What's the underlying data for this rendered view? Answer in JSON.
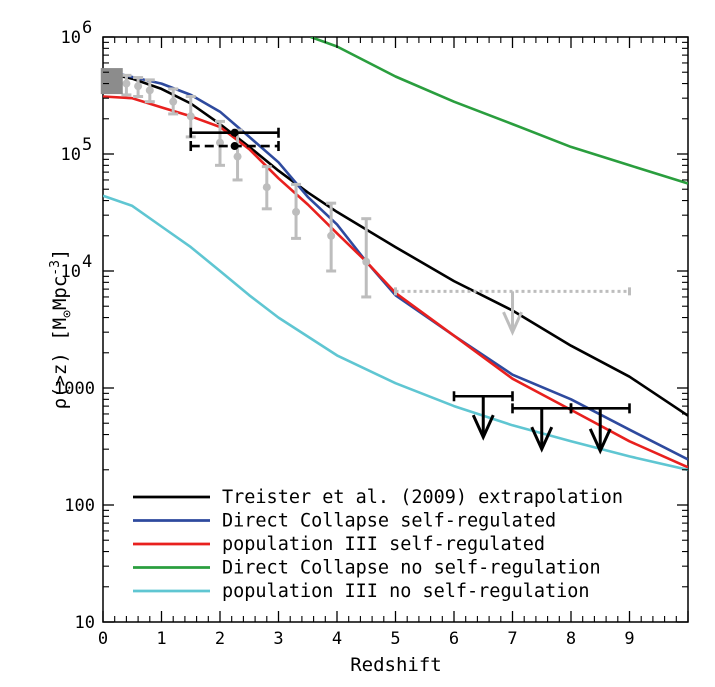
{
  "chart_data": {
    "type": "line",
    "xlabel": "Redshift",
    "ylabel_parts": {
      "prefix": "ρ(>z)  [M",
      "sub": "⊙",
      "mid": "Mpc",
      "sup": "-3",
      "suffix": "]"
    },
    "xlim": [
      0,
      10
    ],
    "ylim": [
      10,
      1000000
    ],
    "yscale": "log",
    "x_ticks": [
      0,
      1,
      2,
      3,
      4,
      5,
      6,
      7,
      8,
      9
    ],
    "x_tick_labels": [
      "0",
      "1",
      "2",
      "3",
      "4",
      "5",
      "6",
      "7",
      "8",
      "9"
    ],
    "y_ticks": [
      10,
      100,
      1000,
      10000,
      100000,
      1000000
    ],
    "y_tick_labels": [
      {
        "base": "10",
        "exp": ""
      },
      {
        "base": "100",
        "exp": ""
      },
      {
        "base": "1000",
        "exp": ""
      },
      {
        "base": "10",
        "exp": "4"
      },
      {
        "base": "10",
        "exp": "5"
      },
      {
        "base": "10",
        "exp": "6"
      }
    ],
    "legend_position": "bottom-left",
    "series": [
      {
        "name": "Treister et al. (2009) extrapolation",
        "color": "#000000",
        "points": [
          [
            0,
            500000
          ],
          [
            0.5,
            440000
          ],
          [
            1,
            360000
          ],
          [
            1.5,
            270000
          ],
          [
            2,
            180000
          ],
          [
            2.5,
            115000
          ],
          [
            3,
            72000
          ],
          [
            3.5,
            47000
          ],
          [
            4,
            32000
          ],
          [
            5,
            16000
          ],
          [
            6,
            8200
          ],
          [
            7,
            4600
          ],
          [
            8,
            2300
          ],
          [
            9,
            1250
          ],
          [
            10,
            580
          ]
        ]
      },
      {
        "name": "Direct Collapse self-regulated",
        "color": "#2e4a9e",
        "points": [
          [
            0,
            480000
          ],
          [
            0.3,
            480000
          ],
          [
            1,
            400000
          ],
          [
            1.5,
            320000
          ],
          [
            2,
            230000
          ],
          [
            2.5,
            140000
          ],
          [
            3,
            85000
          ],
          [
            3.5,
            43000
          ],
          [
            4,
            25000
          ],
          [
            4.5,
            12000
          ],
          [
            5,
            6200
          ],
          [
            6,
            2800
          ],
          [
            7,
            1300
          ],
          [
            8,
            800
          ],
          [
            9,
            440
          ],
          [
            10,
            245
          ]
        ]
      },
      {
        "name": "population III self-regulated",
        "color": "#e8201e",
        "points": [
          [
            0,
            310000
          ],
          [
            0.5,
            300000
          ],
          [
            1,
            250000
          ],
          [
            1.5,
            210000
          ],
          [
            2,
            170000
          ],
          [
            2.5,
            110000
          ],
          [
            3,
            62000
          ],
          [
            3.5,
            37000
          ],
          [
            4,
            21000
          ],
          [
            4.5,
            12000
          ],
          [
            5,
            6500
          ],
          [
            6,
            2800
          ],
          [
            7,
            1200
          ],
          [
            8,
            650
          ],
          [
            9,
            350
          ],
          [
            10,
            210
          ]
        ]
      },
      {
        "name": "Direct Collapse no self-regulation",
        "color": "#2a9e3e",
        "points": [
          [
            3.55,
            1000000
          ],
          [
            4,
            830000
          ],
          [
            5,
            460000
          ],
          [
            6,
            280000
          ],
          [
            7,
            180000
          ],
          [
            8,
            115000
          ],
          [
            9,
            80000
          ],
          [
            10,
            56000
          ]
        ]
      },
      {
        "name": "population III no self-regulation",
        "color": "#5fc6d2",
        "points": [
          [
            0,
            44000
          ],
          [
            0.5,
            36000
          ],
          [
            1,
            24000
          ],
          [
            1.5,
            16000
          ],
          [
            2,
            10000
          ],
          [
            2.5,
            6200
          ],
          [
            3,
            4000
          ],
          [
            4,
            1900
          ],
          [
            5,
            1100
          ],
          [
            6,
            700
          ],
          [
            7,
            480
          ],
          [
            8,
            350
          ],
          [
            9,
            260
          ],
          [
            10,
            200
          ]
        ]
      }
    ],
    "gray_data_points": {
      "color": "#bdbdbd",
      "points": [
        {
          "x": 0.2,
          "y": 420000,
          "ylo": 350000,
          "yhi": 500000
        },
        {
          "x": 0.4,
          "y": 400000,
          "ylo": 320000,
          "yhi": 470000
        },
        {
          "x": 0.6,
          "y": 380000,
          "ylo": 310000,
          "yhi": 450000
        },
        {
          "x": 0.8,
          "y": 350000,
          "ylo": 280000,
          "yhi": 430000
        },
        {
          "x": 1.2,
          "y": 280000,
          "ylo": 220000,
          "yhi": 360000
        },
        {
          "x": 1.5,
          "y": 210000,
          "ylo": 140000,
          "yhi": 310000
        },
        {
          "x": 2.0,
          "y": 125000,
          "ylo": 80000,
          "yhi": 190000
        },
        {
          "x": 2.3,
          "y": 95000,
          "ylo": 60000,
          "yhi": 160000
        },
        {
          "x": 2.8,
          "y": 52000,
          "ylo": 34000,
          "yhi": 78000
        },
        {
          "x": 3.3,
          "y": 32000,
          "ylo": 19000,
          "yhi": 55000
        },
        {
          "x": 3.9,
          "y": 20000,
          "ylo": 10000,
          "yhi": 38000
        },
        {
          "x": 4.5,
          "y": 12000,
          "ylo": 6000,
          "yhi": 28000
        }
      ],
      "square": {
        "x": 0.15,
        "y": 420000
      }
    },
    "gray_upper_limit": {
      "x": 7.0,
      "y": 6700,
      "xmin": 5.0,
      "xmax": 9.0,
      "arrow_to": 3000
    },
    "black_xerr_points": [
      {
        "x": 2.25,
        "y": 152000,
        "xmin": 1.5,
        "xmax": 3.0,
        "dashed": false
      },
      {
        "x": 2.25,
        "y": 117000,
        "xmin": 1.5,
        "xmax": 3.0,
        "dashed": true
      }
    ],
    "upper_limits": [
      {
        "x": 6.5,
        "y": 850,
        "xmin": 6.0,
        "xmax": 7.0,
        "arrow_to": 380
      },
      {
        "x": 7.5,
        "y": 670,
        "xmin": 7.0,
        "xmax": 8.0,
        "arrow_to": 300
      },
      {
        "x": 8.5,
        "y": 670,
        "xmin": 8.0,
        "xmax": 9.0,
        "arrow_to": 290
      }
    ]
  }
}
